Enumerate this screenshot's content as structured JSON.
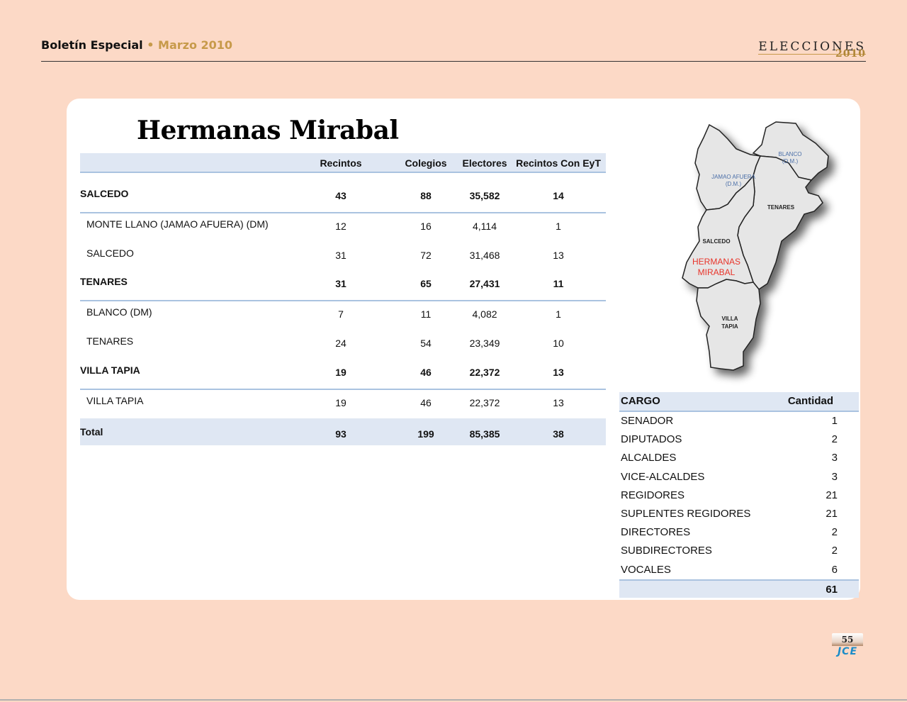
{
  "header": {
    "brand": "Boletín Especial",
    "separator": "•",
    "date": "Marzo 2010",
    "logo_word": "ELECCIONES",
    "logo_year": "2010"
  },
  "title": "Hermanas Mirabal",
  "table": {
    "columns": [
      "Recintos",
      "Colegios",
      "Electores",
      "Recintos Con EyT"
    ],
    "rows": [
      {
        "name": "SALCEDO",
        "level": "municipio",
        "values": [
          "43",
          "88",
          "35,582",
          "14"
        ]
      },
      {
        "name": "MONTE LLANO (JAMAO AFUERA) (DM)",
        "level": "distrito",
        "values": [
          "12",
          "16",
          "4,114",
          "1"
        ]
      },
      {
        "name": "SALCEDO",
        "level": "distrito",
        "values": [
          "31",
          "72",
          "31,468",
          "13"
        ]
      },
      {
        "name": "TENARES",
        "level": "municipio",
        "values": [
          "31",
          "65",
          "27,431",
          "11"
        ]
      },
      {
        "name": "BLANCO (DM)",
        "level": "distrito",
        "values": [
          "7",
          "11",
          "4,082",
          "1"
        ]
      },
      {
        "name": "TENARES",
        "level": "distrito",
        "values": [
          "24",
          "54",
          "23,349",
          "10"
        ]
      },
      {
        "name": "VILLA TAPIA",
        "level": "municipio",
        "values": [
          "19",
          "46",
          "22,372",
          "13"
        ]
      },
      {
        "name": "VILLA TAPIA",
        "level": "distrito",
        "values": [
          "19",
          "46",
          "22,372",
          "13"
        ]
      }
    ],
    "total": {
      "name": "Total",
      "values": [
        "93",
        "199",
        "85,385",
        "38"
      ]
    }
  },
  "cargos": {
    "header": [
      "CARGO",
      "Cantidad"
    ],
    "rows": [
      {
        "cargo": "SENADOR",
        "cantidad": "1"
      },
      {
        "cargo": "DIPUTADOS",
        "cantidad": "2"
      },
      {
        "cargo": "ALCALDES",
        "cantidad": "3"
      },
      {
        "cargo": "VICE-ALCALDES",
        "cantidad": "3"
      },
      {
        "cargo": "REGIDORES",
        "cantidad": "21"
      },
      {
        "cargo": "SUPLENTES REGIDORES",
        "cantidad": "21"
      },
      {
        "cargo": "DIRECTORES",
        "cantidad": "2"
      },
      {
        "cargo": "SUBDIRECTORES",
        "cantidad": "2"
      },
      {
        "cargo": "VOCALES",
        "cantidad": "6"
      }
    ],
    "total": "61"
  },
  "map": {
    "labels": {
      "blanco": [
        "BLANCO",
        "(D.M.)"
      ],
      "jamao": [
        "JAMAO AFUERA",
        "(D.M.)"
      ],
      "tenares": "TENARES",
      "salcedo": "SALCEDO",
      "province": [
        "HERMANAS",
        "MIRABAL"
      ],
      "villa_tapia": [
        "VILLA",
        "TAPIA"
      ]
    },
    "highlight_color": "#e8342a",
    "fill_color": "#e6e6e6"
  },
  "footer": {
    "page_number": "55",
    "org": "JCE"
  }
}
